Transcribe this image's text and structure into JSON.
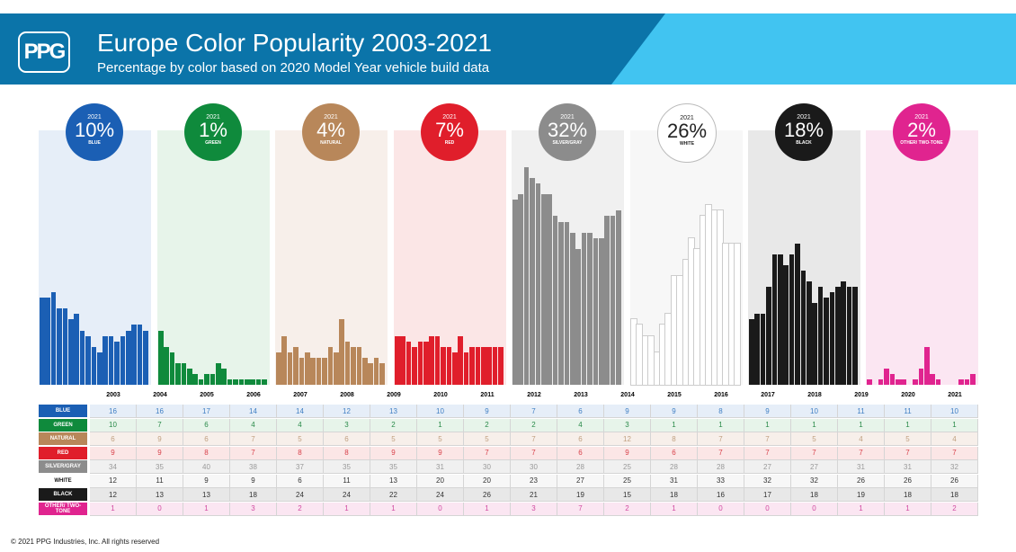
{
  "header": {
    "logo": "PPG",
    "title": "Europe Color Popularity 2003-2021",
    "subtitle": "Percentage by color based on 2020 Model Year vehicle build data"
  },
  "footer": "© 2021 PPG Industries, Inc. All rights reserved",
  "chart_data": {
    "type": "bar",
    "title": "Europe Color Popularity 2003-2021",
    "subtitle": "Percentage by color based on 2020 Model Year vehicle build data",
    "categories": [
      "2003",
      "2004",
      "2005",
      "2006",
      "2007",
      "2008",
      "2009",
      "2010",
      "2011",
      "2012",
      "2013",
      "2014",
      "2015",
      "2016",
      "2017",
      "2018",
      "2019",
      "2020",
      "2021"
    ],
    "highlight_year": "2021",
    "series": [
      {
        "name": "BLUE",
        "label": "BLUE",
        "color": "#1b5fb4",
        "bg": "#e6eef8",
        "text": "#3f7fc4",
        "values": [
          16,
          16,
          17,
          14,
          14,
          12,
          13,
          10,
          9,
          7,
          6,
          9,
          9,
          8,
          9,
          10,
          11,
          11,
          10
        ]
      },
      {
        "name": "GREEN",
        "label": "GREEN",
        "color": "#0f8a3c",
        "bg": "#e7f4ea",
        "text": "#2a8a4a",
        "values": [
          10,
          7,
          6,
          4,
          4,
          3,
          2,
          1,
          2,
          2,
          4,
          3,
          1,
          1,
          1,
          1,
          1,
          1,
          1
        ]
      },
      {
        "name": "NATURAL",
        "label": "NATURAL",
        "color": "#b8875a",
        "bg": "#f7efea",
        "text": "#c0a080",
        "values": [
          6,
          9,
          6,
          7,
          5,
          6,
          5,
          5,
          5,
          7,
          6,
          12,
          8,
          7,
          7,
          5,
          4,
          5,
          4
        ]
      },
      {
        "name": "RED",
        "label": "RED",
        "color": "#e01e2b",
        "bg": "#fbe6e6",
        "text": "#d8404a",
        "values": [
          9,
          9,
          8,
          7,
          8,
          8,
          9,
          9,
          7,
          7,
          6,
          9,
          6,
          7,
          7,
          7,
          7,
          7,
          7
        ]
      },
      {
        "name": "SILVER/GRAY",
        "label": "SILVER/GRAY",
        "color": "#8c8c8c",
        "bg": "#f0f0f0",
        "text": "#999999",
        "values": [
          34,
          35,
          40,
          38,
          37,
          35,
          35,
          31,
          30,
          30,
          28,
          25,
          28,
          28,
          27,
          27,
          31,
          31,
          32
        ]
      },
      {
        "name": "WHITE",
        "label": "WHITE",
        "color": "#ffffff",
        "bg": "#f7f7f7",
        "text": "#333333",
        "values": [
          12,
          11,
          9,
          9,
          6,
          11,
          13,
          20,
          20,
          23,
          27,
          25,
          31,
          33,
          32,
          32,
          26,
          26,
          26
        ]
      },
      {
        "name": "BLACK",
        "label": "BLACK",
        "color": "#1a1a1a",
        "bg": "#e8e8e8",
        "text": "#333333",
        "values": [
          12,
          13,
          13,
          18,
          24,
          24,
          22,
          24,
          26,
          21,
          19,
          15,
          18,
          16,
          17,
          18,
          19,
          18,
          18
        ]
      },
      {
        "name": "OTHER/ TWO-TONE",
        "label": "OTHER/ TWO-TONE",
        "color": "#e0248f",
        "bg": "#fbe6f2",
        "text": "#d04aa0",
        "values": [
          1,
          0,
          1,
          3,
          2,
          1,
          1,
          0,
          1,
          3,
          7,
          2,
          1,
          0,
          0,
          0,
          1,
          1,
          2
        ]
      }
    ],
    "badges": [
      "10%",
      "1%",
      "4%",
      "7%",
      "32%",
      "26%",
      "18%",
      "2%"
    ]
  }
}
